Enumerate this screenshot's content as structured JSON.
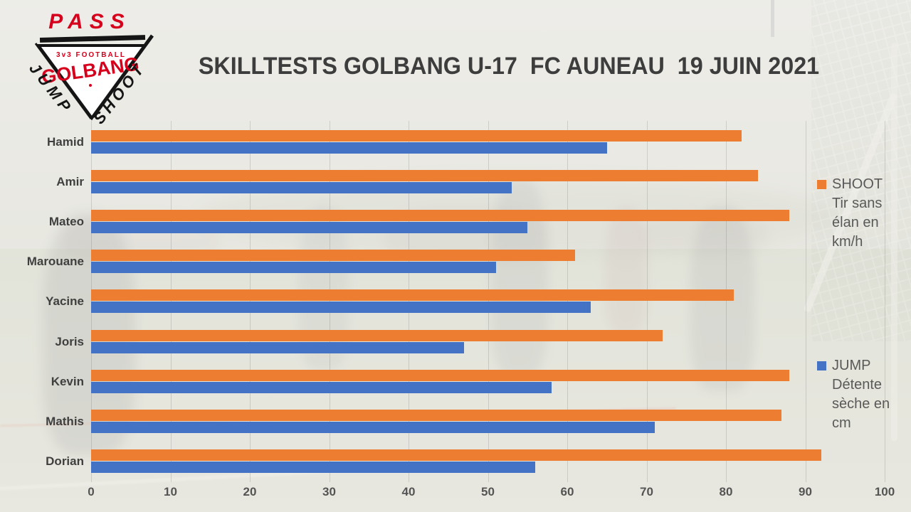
{
  "slide": {
    "title": "SKILLTESTS GOLBANG U-17  FC AUNEAU  19 JUIN 2021"
  },
  "logo": {
    "pass": "PASS",
    "league": "3v3 FOOTBALL",
    "brand": "GOLBANG",
    "jump": "JUMP",
    "shoot": "SHOOT",
    "brand_color": "#d6001c",
    "ink_color": "#151515"
  },
  "chart_data": {
    "type": "bar",
    "orientation": "horizontal",
    "categories": [
      "Hamid",
      "Amir",
      "Mateo",
      "Marouane",
      "Yacine",
      "Joris",
      "Kevin",
      "Mathis",
      "Dorian"
    ],
    "series": [
      {
        "name": "SHOOT Tir sans élan en km/h",
        "color": "#ED7D31",
        "values": [
          82,
          84,
          88,
          61,
          81,
          72,
          88,
          87,
          92
        ]
      },
      {
        "name": "JUMP Détente sèche en cm",
        "color": "#4472C4",
        "values": [
          65,
          53,
          55,
          51,
          63,
          47,
          58,
          71,
          56
        ]
      }
    ],
    "xlim": [
      0,
      100
    ],
    "x_ticks": [
      0,
      10,
      20,
      30,
      40,
      50,
      60,
      70,
      80,
      90,
      100
    ],
    "grid": true,
    "legend_position": "right"
  },
  "legend": {
    "shoot": {
      "label": "SHOOT\nTir sans\nélan en\nkm/h",
      "color": "#ED7D31"
    },
    "jump": {
      "label": "JUMP\nDétente\nsèche en\ncm",
      "color": "#4472C4"
    }
  }
}
